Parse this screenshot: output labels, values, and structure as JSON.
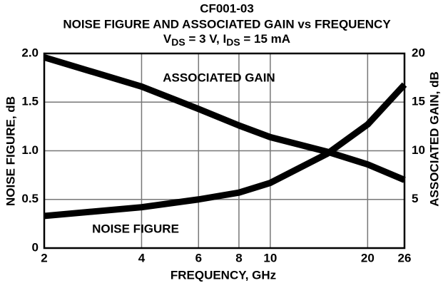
{
  "chart_data": {
    "type": "line",
    "title": [
      "CF001-03",
      "NOISE FIGURE AND ASSOCIATED GAIN vs FREQUENCY"
    ],
    "subtitle": [
      "V",
      "DS",
      " = 3 V, I",
      "DS",
      " = 15 mA"
    ],
    "x_label": "FREQUENCY, GHz",
    "y_label": "NOISE FIGURE, dB",
    "y2_label": "ASSOCIATED GAIN, dB",
    "x": [
      2,
      4,
      6,
      8,
      10,
      15,
      20,
      26
    ],
    "series": [
      {
        "name": "NOISE FIGURE",
        "color": "#000000",
        "values": [
          0.33,
          0.42,
          0.5,
          0.57,
          0.67,
          0.97,
          1.27,
          1.68
        ]
      },
      {
        "name": "ASSOCIATED GAIN",
        "color": "#000000",
        "axis": "y2",
        "values": [
          19.6,
          16.6,
          14.3,
          12.6,
          11.4,
          9.9,
          8.6,
          7.0
        ]
      }
    ],
    "xscale": "log",
    "xlim": [
      2,
      26
    ],
    "xticks": [
      2,
      4,
      6,
      8,
      10,
      20,
      26
    ],
    "ylim": [
      0,
      2
    ],
    "yticks": [
      0,
      0.5,
      {
        "value": 1,
        "label": "1.0"
      },
      1.5,
      {
        "value": 2,
        "label": "2.0"
      }
    ],
    "y2lim": [
      0,
      20
    ],
    "y2ticks": [
      5,
      10,
      15,
      20
    ],
    "grid": true
  }
}
